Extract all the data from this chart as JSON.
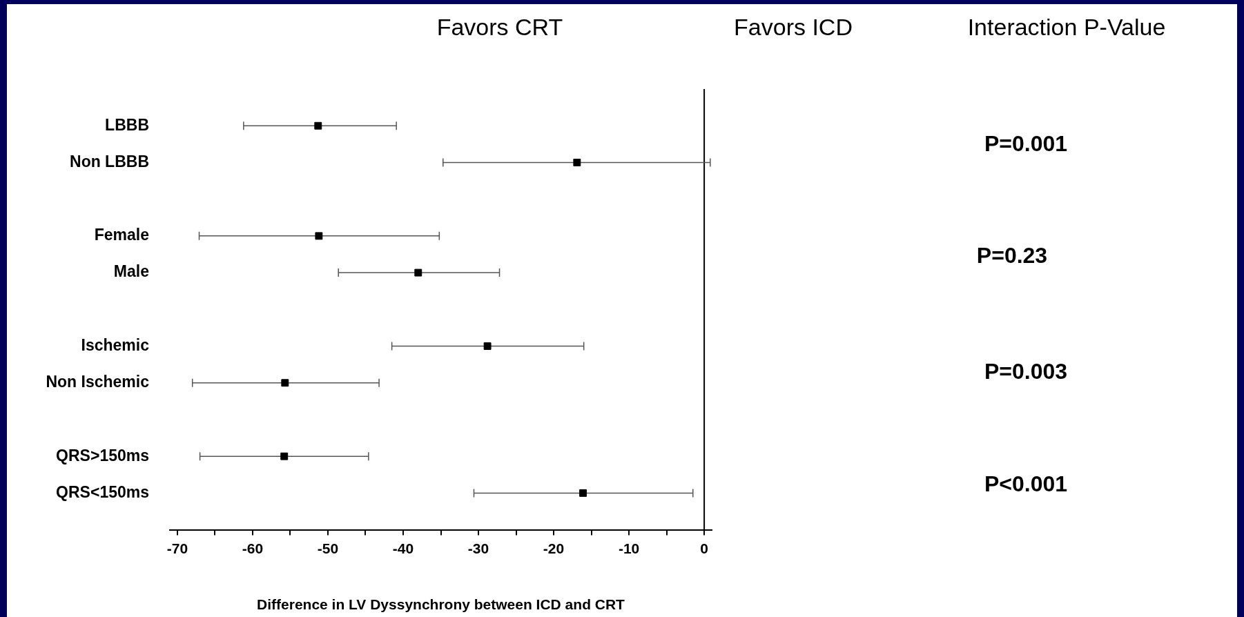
{
  "chart_data": {
    "type": "scatter",
    "orientation": "horizontal",
    "xlabel": "Difference in LV Dyssynchrony between ICD and CRT",
    "categories": [
      "LBBB",
      "Non LBBB",
      null,
      "Female",
      "Male",
      null,
      "Ischemic",
      "Non Ischemic",
      null,
      "QRS>150ms",
      "QRS<150ms"
    ],
    "series": [
      {
        "color": "#000000",
        "values": [
          -51.3,
          -16.9,
          null,
          -51.2,
          -38.0,
          null,
          -28.8,
          -55.7,
          null,
          -55.8,
          -16.1
        ],
        "errors": [
          [
            -61.2,
            -40.9
          ],
          [
            -34.7,
            0.8
          ],
          null,
          [
            -67.1,
            -35.2
          ],
          [
            -48.6,
            -27.2
          ],
          null,
          [
            -41.5,
            -16.0
          ],
          [
            -68.0,
            -43.2
          ],
          null,
          [
            -67.0,
            -44.6
          ],
          [
            -30.6,
            -1.5
          ]
        ]
      }
    ],
    "xlim": [
      -71,
      1
    ],
    "xticks": [
      -70,
      {
        "value": -65,
        "label": null
      },
      -60,
      {
        "value": -55,
        "label": null
      },
      -50,
      {
        "value": -45,
        "label": null
      },
      -40,
      {
        "value": -35,
        "label": null
      },
      -30,
      {
        "value": -25,
        "label": null
      },
      -20,
      {
        "value": -15,
        "label": null
      },
      -10,
      {
        "value": -5,
        "label": null
      },
      0
    ],
    "ref_lines": [
      {
        "axis": "x",
        "value": 0,
        "color": "#000000"
      }
    ],
    "marker": "square",
    "grid": false,
    "legend": false,
    "annotations": [
      "Favors CRT",
      "Favors ICD",
      "Interaction P-Value",
      "P=0.001",
      "P=0.23",
      "P=0.003",
      "P<0.001"
    ]
  }
}
